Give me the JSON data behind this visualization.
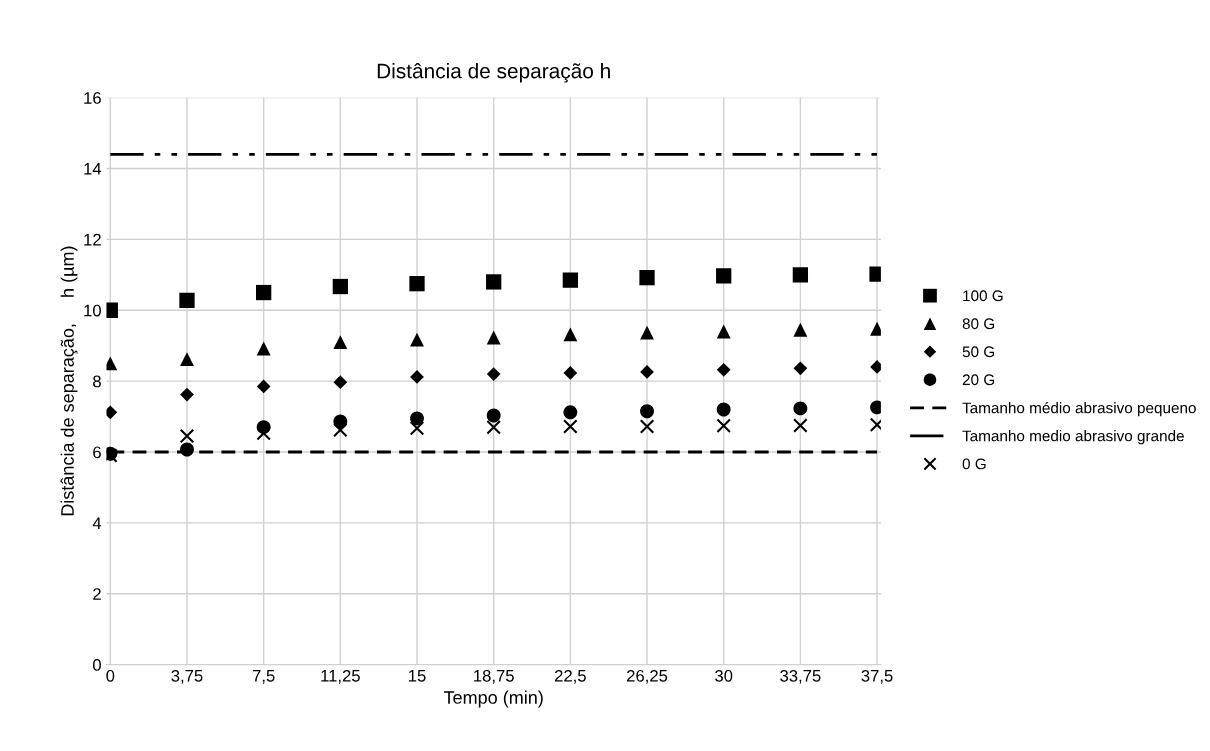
{
  "chart_data": {
    "type": "scatter",
    "title": "Distância de separação h",
    "xlabel": "Tempo (min)",
    "ylabel": "Distância de separação,     h (µm)",
    "categories": [
      "0",
      "3,75",
      "7,5",
      "11,25",
      "15",
      "18,75",
      "22,5",
      "26,25",
      "30",
      "33,75",
      "37,5"
    ],
    "ylim": [
      0,
      16
    ],
    "yticks": [
      0,
      2,
      4,
      6,
      8,
      10,
      12,
      14,
      16
    ],
    "grid": true,
    "legend": "right",
    "series": [
      {
        "name": "100 G",
        "color": "#000000",
        "marker": "square",
        "values": [
          10.0,
          10.28,
          10.5,
          10.67,
          10.75,
          10.8,
          10.85,
          10.92,
          10.97,
          11.0,
          11.02
        ]
      },
      {
        "name": "80 G",
        "color": "#000000",
        "marker": "triangle",
        "values": [
          8.5,
          8.62,
          8.92,
          9.1,
          9.17,
          9.23,
          9.32,
          9.37,
          9.4,
          9.45,
          9.48
        ]
      },
      {
        "name": "50 G",
        "color": "#000000",
        "marker": "diamond",
        "values": [
          7.12,
          7.62,
          7.85,
          7.97,
          8.12,
          8.2,
          8.23,
          8.26,
          8.32,
          8.36,
          8.4
        ]
      },
      {
        "name": "20 G",
        "color": "#000000",
        "marker": "circle",
        "values": [
          5.95,
          6.07,
          6.7,
          6.86,
          6.95,
          7.03,
          7.12,
          7.15,
          7.2,
          7.23,
          7.26
        ]
      },
      {
        "name": "Tamanho médio abrasivo pequeno",
        "type": "line",
        "color": "#000000",
        "marker": "none",
        "line_style": "dashed",
        "values": [
          6,
          6,
          6,
          6,
          6,
          6,
          6,
          6,
          6,
          6,
          6
        ]
      },
      {
        "name": "Tamanho medio abrasivo grande",
        "type": "line",
        "color": "#000000",
        "marker": "none",
        "line_style": "dashdotdot",
        "values": [
          14.4,
          14.4,
          14.4,
          14.4,
          14.4,
          14.4,
          14.4,
          14.4,
          14.4,
          14.4,
          14.4
        ]
      },
      {
        "name": "0 G",
        "color": "#000000",
        "marker": "cross",
        "values": [
          5.9,
          6.45,
          6.53,
          6.62,
          6.67,
          6.7,
          6.72,
          6.72,
          6.74,
          6.75,
          6.77
        ]
      }
    ]
  }
}
